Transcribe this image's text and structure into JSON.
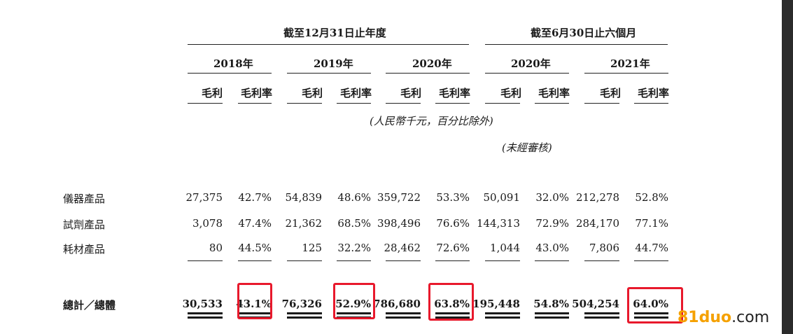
{
  "header": {
    "group_fy": "截至12月31日止年度",
    "group_6m": "截至6月30日止六個月",
    "years": [
      "2018年",
      "2019年",
      "2020年",
      "2020年",
      "2021年"
    ],
    "sub_gp": "毛利",
    "sub_gm": "毛利率"
  },
  "notes": {
    "currency": "(人民幣千元，百分比除外)",
    "unaudited": "(未經審核)"
  },
  "rows": [
    {
      "label": "儀器產品",
      "values": [
        "27,375",
        "42.7%",
        "54,839",
        "48.6%",
        "359,722",
        "53.3%",
        "50,091",
        "32.0%",
        "212,278",
        "52.8%"
      ]
    },
    {
      "label": "試劑產品",
      "values": [
        "3,078",
        "47.4%",
        "21,362",
        "68.5%",
        "398,496",
        "76.6%",
        "144,313",
        "72.9%",
        "284,170",
        "77.1%"
      ]
    },
    {
      "label": "耗材產品",
      "values": [
        "80",
        "44.5%",
        "125",
        "32.2%",
        "28,462",
        "72.6%",
        "1,044",
        "43.0%",
        "7,806",
        "44.7%"
      ]
    }
  ],
  "total": {
    "label": "總計／總體",
    "values": [
      "30,533",
      "43.1%",
      "76,326",
      "52.9%",
      "786,680",
      "63.8%",
      "195,448",
      "54.8%",
      "504,254",
      "64.0%"
    ]
  },
  "highlight_color": "#e8192c",
  "watermark": {
    "brand": "81duo",
    "domain": ".com",
    "brand_color": "#f5a100",
    "domain_color": "#222222"
  }
}
